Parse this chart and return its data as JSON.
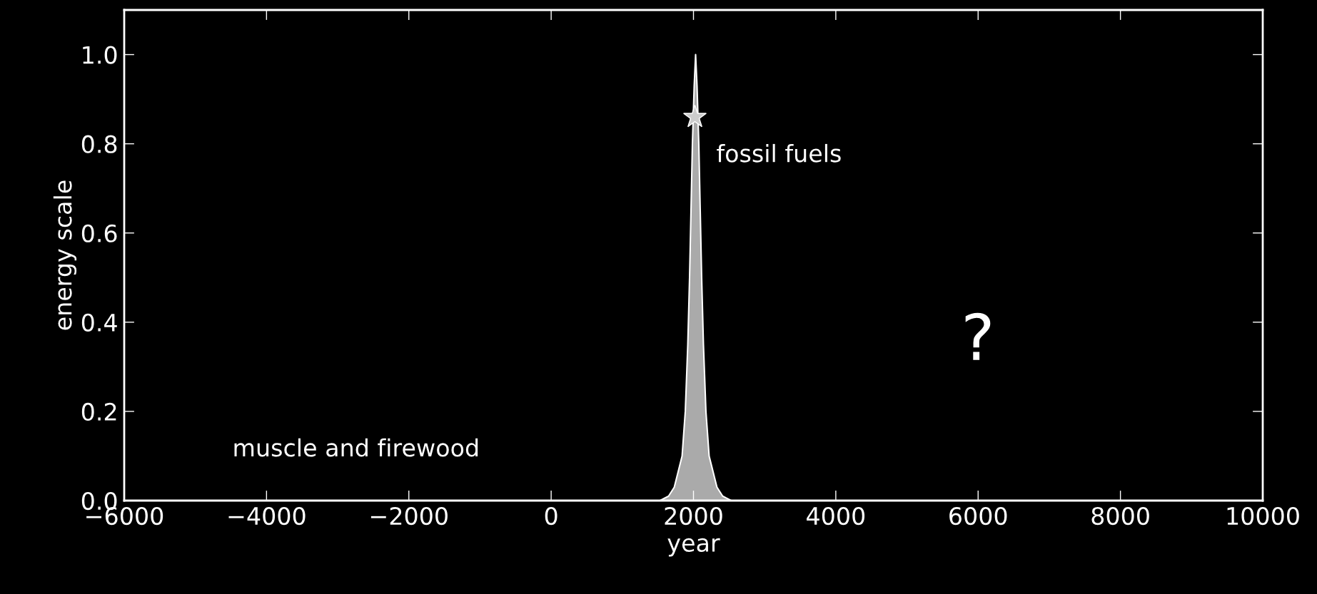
{
  "chart_data": {
    "type": "area",
    "xlabel": "year",
    "ylabel": "energy scale",
    "xlim": [
      -6000,
      10000
    ],
    "xticks": [
      -6000,
      -4000,
      -2000,
      0,
      2000,
      4000,
      6000,
      8000,
      10000
    ],
    "ylim": [
      0,
      1.1
    ],
    "yticks": [
      {
        "value": 0.0,
        "label": "0.0"
      },
      {
        "value": 0.2,
        "label": "0.2"
      },
      {
        "value": 0.4,
        "label": "0.4"
      },
      {
        "value": 0.6,
        "label": "0.6"
      },
      {
        "value": 0.8,
        "label": "0.8"
      },
      {
        "value": 1.0,
        "label": "1.0"
      }
    ],
    "grid": false,
    "legend": false,
    "series": [
      {
        "color": "#aaaaaa",
        "x": [
          1530,
          1650,
          1730,
          1840,
          1885,
          1920,
          1945,
          1965,
          1985,
          2010,
          2030,
          2050,
          2075,
          2095,
          2115,
          2140,
          2175,
          2220,
          2330,
          2410,
          2530
        ],
        "values": [
          0,
          0.01,
          0.03,
          0.1,
          0.2,
          0.35,
          0.5,
          0.65,
          0.8,
          0.93,
          1.0,
          0.93,
          0.8,
          0.65,
          0.5,
          0.35,
          0.2,
          0.1,
          0.03,
          0.01,
          0
        ]
      },
      {
        "type": "scatter",
        "marker": "star",
        "color": "#cccccc",
        "x": [
          2020
        ],
        "values": [
          0.86
        ]
      }
    ],
    "annotations": [
      "muscle and firewood",
      "fossil fuels",
      "?"
    ]
  }
}
